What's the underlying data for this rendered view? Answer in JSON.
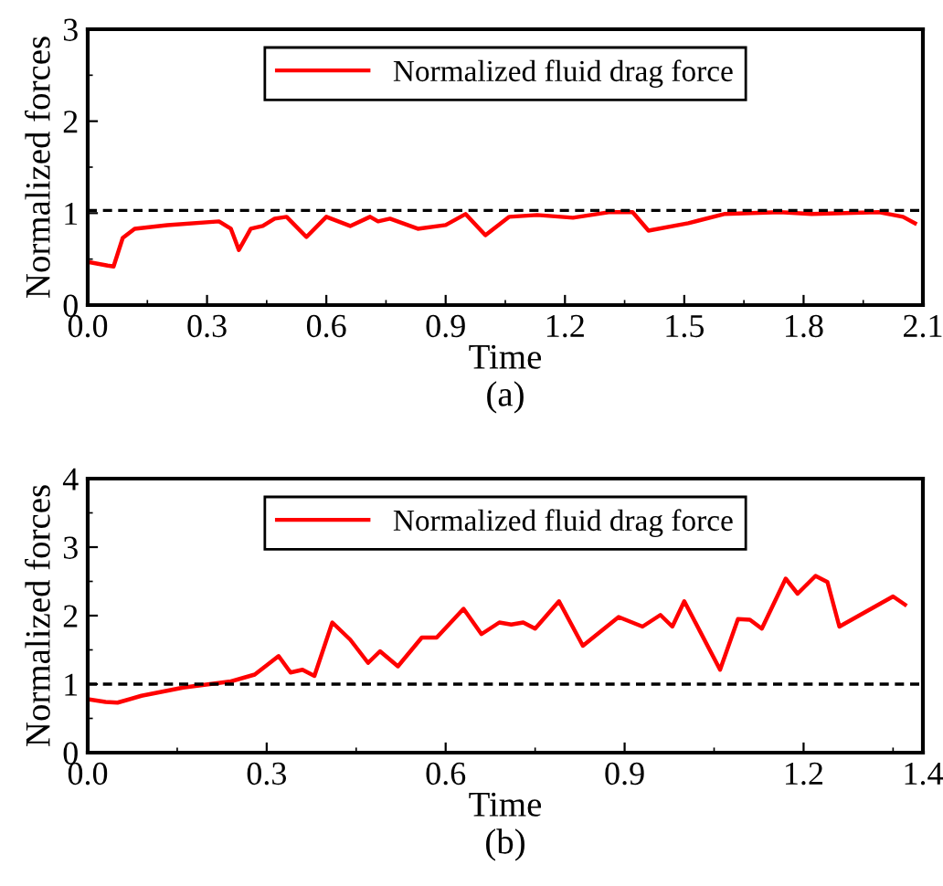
{
  "chart_data": [
    {
      "type": "line",
      "xlabel": "Time",
      "ylabel": "Normalized forces",
      "annotations": [
        "(a)"
      ],
      "legend": "top",
      "grid": false,
      "line_style": "solid",
      "marker": "none",
      "xlim": [
        0,
        2.1
      ],
      "xticks": [
        {
          "value": 0,
          "label": "0.0"
        },
        0.3,
        0.6,
        0.9,
        1.2,
        1.5,
        1.8,
        2.1
      ],
      "ylim": [
        0,
        3
      ],
      "yticks": [
        0,
        1,
        2,
        3
      ],
      "ref_lines": [
        {
          "axis": "y",
          "value": 1.03,
          "color": "#000000",
          "line_style": "dashed"
        }
      ],
      "series": [
        {
          "name": "Normalized fluid drag force",
          "color": "#ff0000",
          "x": [
            0,
            0.05,
            0.065,
            0.088,
            0.118,
            0.2,
            0.33,
            0.36,
            0.38,
            0.41,
            0.44,
            0.47,
            0.5,
            0.55,
            0.6,
            0.66,
            0.71,
            0.73,
            0.76,
            0.83,
            0.9,
            0.95,
            1.0,
            1.06,
            1.13,
            1.22,
            1.31,
            1.37,
            1.41,
            1.51,
            1.6,
            1.74,
            1.82,
            1.99,
            2.05,
            2.08
          ],
          "values": [
            0.47,
            0.43,
            0.42,
            0.73,
            0.83,
            0.87,
            0.91,
            0.83,
            0.6,
            0.83,
            0.86,
            0.94,
            0.96,
            0.74,
            0.96,
            0.86,
            0.96,
            0.91,
            0.94,
            0.83,
            0.87,
            0.99,
            0.76,
            0.96,
            0.98,
            0.95,
            1.01,
            1.01,
            0.81,
            0.89,
            0.99,
            1.01,
            0.99,
            1.01,
            0.96,
            0.89
          ]
        }
      ]
    },
    {
      "type": "line",
      "xlabel": "Time",
      "ylabel": "Normalized forces",
      "annotations": [
        "(b)"
      ],
      "legend": "top",
      "grid": false,
      "line_style": "solid",
      "marker": "none",
      "xlim": [
        0,
        1.4
      ],
      "xticks": [
        {
          "value": 0,
          "label": "0.0"
        },
        0.3,
        0.6,
        0.9,
        1.2,
        1.4
      ],
      "ylim": [
        0,
        4
      ],
      "yticks": [
        0,
        1,
        2,
        3,
        4
      ],
      "ref_lines": [
        {
          "axis": "y",
          "value": 1.0,
          "color": "#000000",
          "line_style": "dashed"
        }
      ],
      "series": [
        {
          "name": "Normalized fluid drag force",
          "color": "#ff0000",
          "x": [
            0,
            0.03,
            0.05,
            0.09,
            0.16,
            0.24,
            0.28,
            0.32,
            0.34,
            0.36,
            0.38,
            0.41,
            0.44,
            0.47,
            0.49,
            0.52,
            0.56,
            0.585,
            0.63,
            0.66,
            0.69,
            0.71,
            0.73,
            0.75,
            0.79,
            0.83,
            0.89,
            0.93,
            0.96,
            0.98,
            1.0,
            1.06,
            1.09,
            1.11,
            1.13,
            1.17,
            1.19,
            1.22,
            1.24,
            1.26,
            1.35,
            1.37
          ],
          "values": [
            0.78,
            0.74,
            0.73,
            0.83,
            0.95,
            1.04,
            1.14,
            1.41,
            1.17,
            1.21,
            1.12,
            1.9,
            1.65,
            1.31,
            1.48,
            1.26,
            1.68,
            1.68,
            2.1,
            1.73,
            1.9,
            1.87,
            1.9,
            1.81,
            2.21,
            1.56,
            1.98,
            1.84,
            2.01,
            1.84,
            2.21,
            1.21,
            1.95,
            1.94,
            1.81,
            2.54,
            2.32,
            2.58,
            2.49,
            1.84,
            2.28,
            2.16
          ]
        }
      ]
    }
  ]
}
